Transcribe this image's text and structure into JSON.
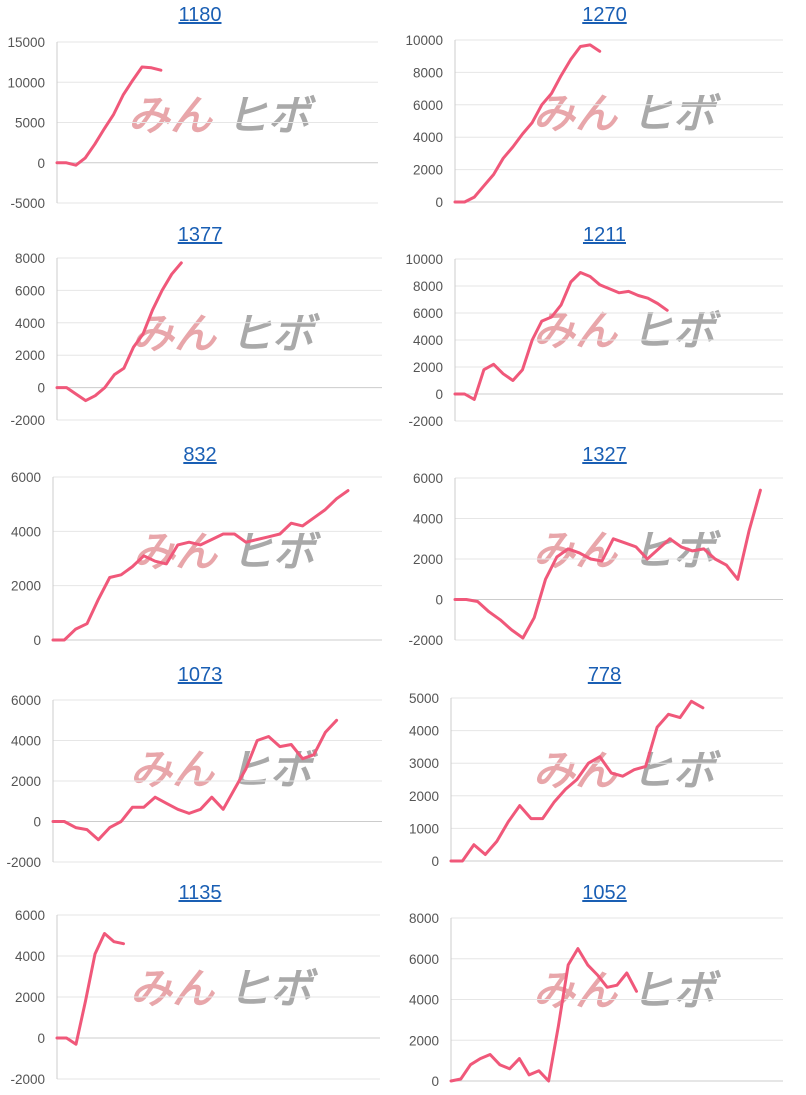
{
  "colors": {
    "line": "#f0587a",
    "grid": "#e6e6e6",
    "axis": "#cccccc",
    "link": "#1a5fb4"
  },
  "watermark": {
    "part1": "みん",
    "part2": "ヒボ"
  },
  "chart_data": [
    {
      "type": "line",
      "title": "1180",
      "yticks": [
        15000,
        10000,
        5000,
        0,
        -5000
      ],
      "ylim": [
        -5000,
        15000
      ],
      "xmax": 34,
      "values": [
        0,
        0,
        -300,
        600,
        2300,
        4200,
        6000,
        8400,
        10200,
        11900,
        11800,
        11500
      ]
    },
    {
      "type": "line",
      "title": "1270",
      "yticks": [
        10000,
        8000,
        6000,
        4000,
        2000,
        0
      ],
      "ylim": [
        0,
        10000
      ],
      "xmax": 34,
      "values": [
        0,
        0,
        300,
        1000,
        1700,
        2700,
        3400,
        4200,
        4900,
        6000,
        6700,
        7800,
        8800,
        9600,
        9700,
        9300
      ]
    },
    {
      "type": "line",
      "title": "1377",
      "yticks": [
        8000,
        6000,
        4000,
        2000,
        0,
        -2000
      ],
      "ylim": [
        -2000,
        8000
      ],
      "xmax": 34,
      "values": [
        0,
        0,
        -400,
        -800,
        -500,
        0,
        800,
        1200,
        2500,
        3300,
        4800,
        6000,
        7000,
        7700
      ]
    },
    {
      "type": "line",
      "title": "1211",
      "yticks": [
        10000,
        8000,
        6000,
        4000,
        2000,
        0,
        -2000
      ],
      "ylim": [
        -2000,
        10000
      ],
      "xmax": 34,
      "values": [
        0,
        0,
        -400,
        1800,
        2200,
        1500,
        1000,
        1800,
        4000,
        5400,
        5700,
        6600,
        8300,
        9000,
        8700,
        8100,
        7800,
        7500,
        7600,
        7300,
        7100,
        6700,
        6200
      ]
    },
    {
      "type": "line",
      "title": "832",
      "yticks": [
        6000,
        4000,
        2000,
        0
      ],
      "ylim": [
        0,
        6000
      ],
      "xmax": 29,
      "values": [
        0,
        0,
        400,
        600,
        1500,
        2300,
        2400,
        2700,
        3100,
        2900,
        2800,
        3500,
        3600,
        3500,
        3700,
        3900,
        3900,
        3600,
        3700,
        3800,
        3900,
        4300,
        4200,
        4500,
        4800,
        5200,
        5500
      ]
    },
    {
      "type": "line",
      "title": "1327",
      "yticks": [
        6000,
        4000,
        2000,
        0,
        -2000
      ],
      "ylim": [
        -2000,
        6000
      ],
      "xmax": 29,
      "values": [
        0,
        0,
        -100,
        -600,
        -1000,
        -1500,
        -1900,
        -900,
        1000,
        2100,
        2500,
        2300,
        2000,
        1900,
        3000,
        2800,
        2600,
        2000,
        2500,
        3000,
        2600,
        2400,
        2500,
        2000,
        1700,
        1000,
        3400,
        5400
      ]
    },
    {
      "type": "line",
      "title": "1073",
      "yticks": [
        6000,
        4000,
        2000,
        0,
        -2000
      ],
      "ylim": [
        -2000,
        6000
      ],
      "xmax": 29,
      "values": [
        0,
        0,
        -300,
        -400,
        -900,
        -300,
        0,
        700,
        700,
        1200,
        900,
        600,
        400,
        600,
        1200,
        600,
        1600,
        2600,
        4000,
        4200,
        3700,
        3800,
        3100,
        3300,
        4400,
        5000
      ]
    },
    {
      "type": "line",
      "title": "778",
      "yticks": [
        5000,
        4000,
        3000,
        2000,
        1000,
        0
      ],
      "ylim": [
        0,
        5000
      ],
      "xmax": 29,
      "values": [
        0,
        0,
        500,
        200,
        600,
        1200,
        1700,
        1300,
        1300,
        1800,
        2200,
        2500,
        3000,
        3200,
        2700,
        2600,
        2800,
        2900,
        4100,
        4500,
        4400,
        4900,
        4700
      ]
    },
    {
      "type": "line",
      "title": "1135",
      "yticks": [
        6000,
        4000,
        2000,
        0,
        -2000
      ],
      "ylim": [
        -2000,
        6000
      ],
      "xmax": 34,
      "values": [
        0,
        0,
        -300,
        1800,
        4100,
        5100,
        4700,
        4600
      ]
    },
    {
      "type": "line",
      "title": "1052",
      "yticks": [
        8000,
        6000,
        4000,
        2000,
        0
      ],
      "ylim": [
        0,
        8000
      ],
      "xmax": 34,
      "values": [
        0,
        100,
        800,
        1100,
        1300,
        800,
        600,
        1100,
        300,
        500,
        0,
        2700,
        5700,
        6500,
        5700,
        5200,
        4600,
        4700,
        5300,
        4400
      ]
    }
  ]
}
